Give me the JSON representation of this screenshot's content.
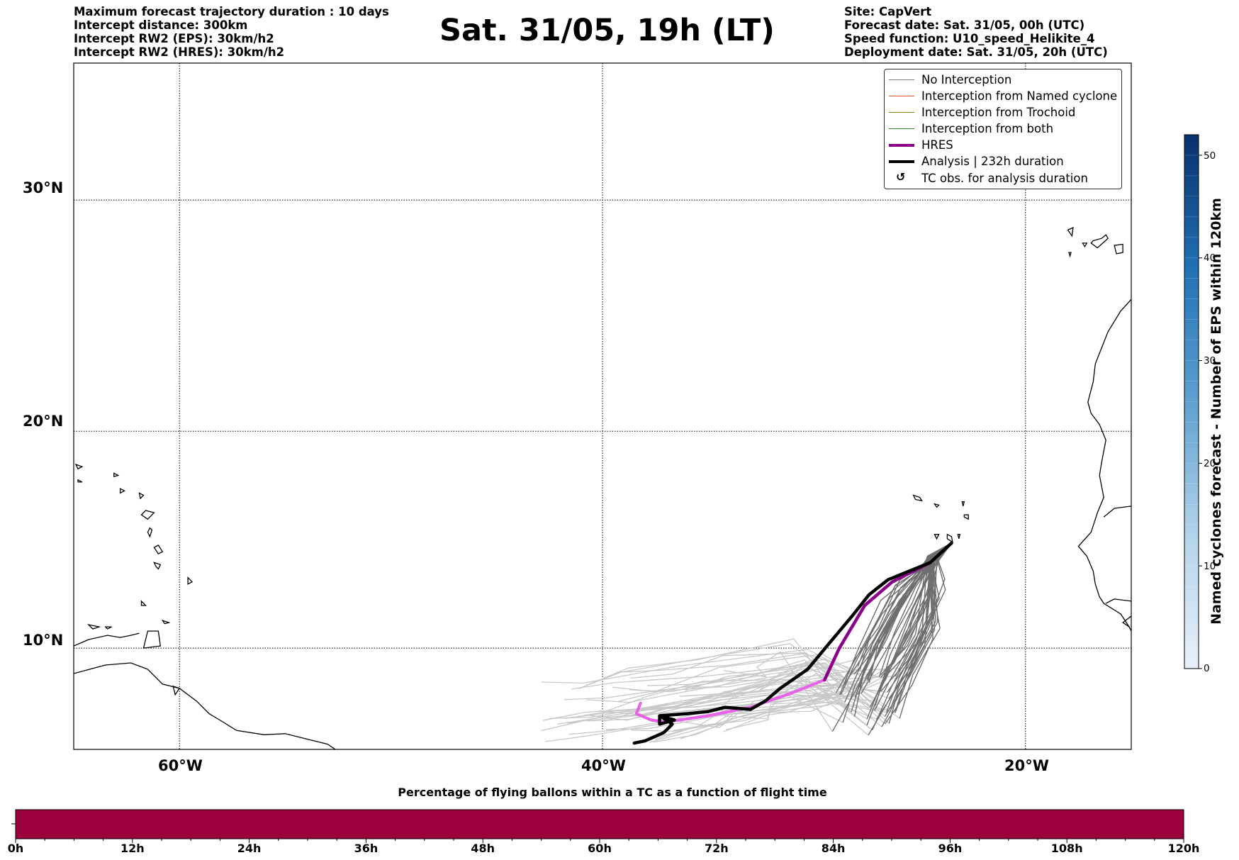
{
  "header": {
    "left_lines": [
      "Maximum forecast trajectory duration : 10 days",
      "Intercept distance: 300km",
      "Intercept RW2 (EPS):  30km/h2",
      "Intercept RW2 (HRES): 30km/h2"
    ],
    "title": "Sat. 31/05, 19h (LT)",
    "right_lines": [
      "Site: CapVert",
      "Forecast date: Sat. 31/05, 00h (UTC)",
      "Speed function: U10_speed_Helikite_4",
      "Deployment date: Sat. 31/05, 20h (UTC)"
    ]
  },
  "map": {
    "lat_labels": [
      "30°N",
      "20°N",
      "10°N"
    ],
    "lon_labels": [
      "60°W",
      "40°W",
      "20°W"
    ],
    "extent": {
      "lon_min": -65,
      "lon_max": -15,
      "lat_min": 5.2,
      "lat_max": 35.5
    },
    "grid_lats": [
      30,
      20,
      10
    ],
    "grid_lons": [
      -60,
      -40,
      -20
    ],
    "deployment_site": {
      "lon": -23.5,
      "lat": 14.9
    }
  },
  "legend": {
    "items": [
      {
        "label": "No Interception",
        "color": "#808080",
        "kind": "thin"
      },
      {
        "label": "Interception from Named cyclone",
        "color": "#e8542a",
        "kind": "thin"
      },
      {
        "label": "Interception from Trochoid",
        "color": "#808000",
        "kind": "thin"
      },
      {
        "label": "Interception from both",
        "color": "#2e8b2e",
        "kind": "thin"
      },
      {
        "label": "HRES",
        "color": "#8b008b",
        "kind": "thick"
      },
      {
        "label": "Analysis | 232h duration",
        "color": "#000000",
        "kind": "thick"
      },
      {
        "label": "TC obs. for analysis duration",
        "color": "#000000",
        "kind": "symbol",
        "symbol": "↺"
      }
    ]
  },
  "colorbar": {
    "title": "Named cyclones forecast - Number of EPS within 120km",
    "ticks": [
      "0",
      "10",
      "20",
      "30",
      "40",
      "50"
    ],
    "range": [
      0,
      52
    ],
    "color_low": "#e8f1fa",
    "color_high": "#08306b"
  },
  "chart_data": {
    "type": "line",
    "title": "Sat. 31/05, 19h (LT)",
    "series": [
      {
        "name": "HRES",
        "color": "#8b008b",
        "points": [
          [
            -23.5,
            14.9
          ],
          [
            -24.5,
            14.0
          ],
          [
            -26.3,
            13.1
          ],
          [
            -27.6,
            12.0
          ],
          [
            -28.8,
            10.0
          ],
          [
            -29.5,
            8.5
          ],
          [
            -31.0,
            7.9
          ],
          [
            -33.0,
            7.2
          ],
          [
            -35.0,
            6.8
          ],
          [
            -37.0,
            6.5
          ],
          [
            -37.7,
            6.6
          ],
          [
            -38.4,
            6.9
          ],
          [
            -38.2,
            7.4
          ]
        ]
      },
      {
        "name": "Analysis | 232h duration",
        "color": "#000000",
        "points": [
          [
            -23.5,
            14.9
          ],
          [
            -24.5,
            14.0
          ],
          [
            -26.5,
            13.2
          ],
          [
            -27.4,
            12.5
          ],
          [
            -28.2,
            11.5
          ],
          [
            -29.3,
            10.2
          ],
          [
            -30.3,
            9.0
          ],
          [
            -31.6,
            8.1
          ],
          [
            -32.3,
            7.5
          ],
          [
            -33.0,
            7.1
          ],
          [
            -34.2,
            7.2
          ],
          [
            -35.0,
            7.0
          ],
          [
            -36.0,
            6.9
          ],
          [
            -37.3,
            6.8
          ],
          [
            -36.6,
            6.6
          ],
          [
            -37.3,
            6.4
          ],
          [
            -37.3,
            6.8
          ],
          [
            -36.7,
            6.4
          ],
          [
            -37.1,
            6.0
          ],
          [
            -38.0,
            5.6
          ],
          [
            -38.5,
            5.5
          ]
        ]
      }
    ],
    "eps_trajectories_count": 50,
    "timeline": {
      "title": "Percentage of flying ballons within a TC as a function of flight time",
      "ticks": [
        "0h",
        "12h",
        "24h",
        "36h",
        "48h",
        "60h",
        "72h",
        "84h",
        "96h",
        "108h",
        "120h"
      ],
      "bar_color": "#9b003c",
      "percentage": 0
    }
  }
}
